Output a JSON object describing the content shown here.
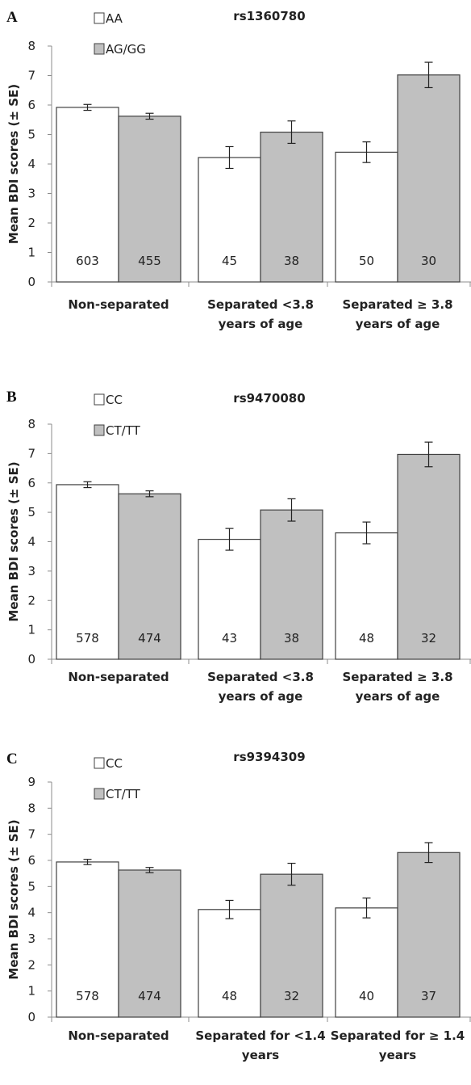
{
  "colors": {
    "series_1": "#ffffff",
    "series_2": "#c0c0c0",
    "bar_stroke": "#404040",
    "axis": "#8c8c8c"
  },
  "chart_data": [
    {
      "panel": "A",
      "type": "bar",
      "title": "rs1360780",
      "ylabel": "Mean BDI scores (± SE)",
      "xlabel": "",
      "ylim": [
        0,
        8
      ],
      "yticks": [
        0,
        1,
        2,
        3,
        4,
        5,
        6,
        7,
        8
      ],
      "grid": false,
      "legend_position": "top-left",
      "categories": [
        [
          "Non-separated"
        ],
        [
          "Separated <3.8",
          "years of age"
        ],
        [
          "Separated ≥ 3.8",
          "years of age"
        ]
      ],
      "series": [
        {
          "name": "AA",
          "values": [
            5.92,
            4.22,
            4.4
          ],
          "errors": [
            0.1,
            0.37,
            0.35
          ],
          "n": [
            "603",
            "45",
            "50"
          ]
        },
        {
          "name": "AG/GG",
          "values": [
            5.62,
            5.08,
            7.02
          ],
          "errors": [
            0.1,
            0.38,
            0.43
          ],
          "n": [
            "455",
            "38",
            "30"
          ]
        }
      ]
    },
    {
      "panel": "B",
      "type": "bar",
      "title": "rs9470080",
      "ylabel": "Mean BDI scores (± SE)",
      "xlabel": "",
      "ylim": [
        0,
        8
      ],
      "yticks": [
        0,
        1,
        2,
        3,
        4,
        5,
        6,
        7,
        8
      ],
      "grid": false,
      "legend_position": "top-left",
      "categories": [
        [
          "Non-separated"
        ],
        [
          "Separated <3.8",
          "years of age"
        ],
        [
          "Separated ≥ 3.8",
          "years of age"
        ]
      ],
      "series": [
        {
          "name": "CC",
          "values": [
            5.94,
            4.08,
            4.3
          ],
          "errors": [
            0.1,
            0.37,
            0.37
          ],
          "n": [
            "578",
            "43",
            "48"
          ]
        },
        {
          "name": "CT/TT",
          "values": [
            5.63,
            5.08,
            6.97
          ],
          "errors": [
            0.1,
            0.38,
            0.42
          ],
          "n": [
            "474",
            "38",
            "32"
          ]
        }
      ]
    },
    {
      "panel": "C",
      "type": "bar",
      "title": "rs9394309",
      "ylabel": "Mean BDI scores (± SE)",
      "xlabel": "",
      "ylim": [
        0,
        9
      ],
      "yticks": [
        0,
        1,
        2,
        3,
        4,
        5,
        6,
        7,
        8,
        9
      ],
      "grid": false,
      "legend_position": "top-left",
      "categories": [
        [
          "Non-separated"
        ],
        [
          "Separated for <1.4",
          "years"
        ],
        [
          "Separated for ≥ 1.4",
          "years"
        ]
      ],
      "series": [
        {
          "name": "CC",
          "values": [
            5.94,
            4.12,
            4.18
          ],
          "errors": [
            0.1,
            0.35,
            0.38
          ],
          "n": [
            "578",
            "48",
            "40"
          ]
        },
        {
          "name": "CT/TT",
          "values": [
            5.63,
            5.47,
            6.3
          ],
          "errors": [
            0.1,
            0.42,
            0.38
          ],
          "n": [
            "474",
            "32",
            "37"
          ]
        }
      ]
    }
  ]
}
